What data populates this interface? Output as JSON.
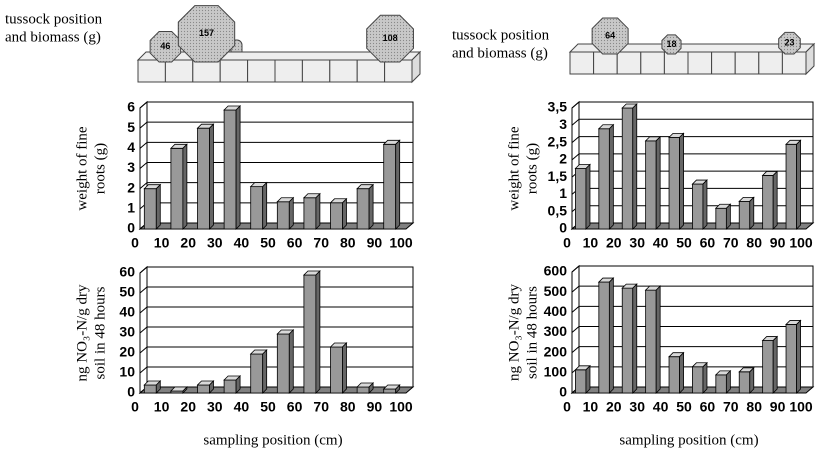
{
  "diagrams": [
    {
      "label": [
        "tussock position",
        "and biomass (g)"
      ],
      "items": [
        {
          "position": 10,
          "biomass": 46
        },
        {
          "position": 25,
          "biomass": 157
        },
        {
          "position": 92,
          "biomass": 108
        }
      ]
    },
    {
      "label": [
        "tussock position",
        "and biomass (g)"
      ],
      "items": [
        {
          "position": 17,
          "biomass": 64
        },
        {
          "position": 43,
          "biomass": 18
        },
        {
          "position": 93,
          "biomass": 23
        }
      ]
    }
  ],
  "chart_data": [
    {
      "type": "bar3d",
      "y_label": [
        "weight of fine",
        "roots (g)"
      ],
      "x": [
        5,
        15,
        25,
        35,
        45,
        55,
        65,
        75,
        85,
        95
      ],
      "values": [
        2.0,
        4.0,
        5.0,
        5.9,
        2.1,
        1.35,
        1.55,
        1.3,
        2.0,
        4.2
      ],
      "xlim": [
        0,
        100
      ],
      "xticks": [
        0,
        10,
        20,
        30,
        40,
        50,
        60,
        70,
        80,
        90,
        100
      ],
      "ylim": [
        0,
        6
      ],
      "yticks": [
        0,
        1,
        2,
        3,
        4,
        5,
        6
      ],
      "grid": true,
      "color": "#999999"
    },
    {
      "type": "bar3d",
      "y_label": [
        "ng NO₃-N/g dry",
        "soil in 48 hours"
      ],
      "x_label": "sampling position (cm)",
      "x": [
        5,
        15,
        25,
        35,
        45,
        55,
        65,
        75,
        85,
        95
      ],
      "values": [
        4,
        1,
        4,
        6.5,
        19.5,
        29.5,
        59,
        23,
        3,
        2
      ],
      "xlim": [
        0,
        100
      ],
      "xticks": [
        0,
        10,
        20,
        30,
        40,
        50,
        60,
        70,
        80,
        90,
        100
      ],
      "ylim": [
        0,
        60
      ],
      "yticks": [
        0,
        10,
        20,
        30,
        40,
        50,
        60
      ],
      "grid": true,
      "color": "#999999"
    },
    {
      "type": "bar3d",
      "y_label": [
        "weight of fine",
        "roots (g)"
      ],
      "x": [
        5,
        15,
        25,
        35,
        45,
        55,
        65,
        75,
        85,
        95
      ],
      "values": [
        1.75,
        2.9,
        3.5,
        2.55,
        2.65,
        1.3,
        0.6,
        0.8,
        1.55,
        2.45
      ],
      "xlim": [
        0,
        100
      ],
      "xticks": [
        0,
        10,
        20,
        30,
        40,
        50,
        60,
        70,
        80,
        90,
        100
      ],
      "ylim": [
        0,
        3.5
      ],
      "yticks": [
        0,
        {
          "value": 0.5,
          "label": "0,5"
        },
        1,
        {
          "value": 1.5,
          "label": "1,5"
        },
        2,
        {
          "value": 2.5,
          "label": "2,5"
        },
        3,
        {
          "value": 3.5,
          "label": "3,5"
        }
      ],
      "grid": true,
      "color": "#999999"
    },
    {
      "type": "bar3d",
      "y_label": [
        "ng NO₃-N/g dry",
        "soil in 48 hours"
      ],
      "x_label": "sampling position (cm)",
      "x": [
        5,
        15,
        25,
        35,
        45,
        55,
        65,
        75,
        85,
        95
      ],
      "values": [
        115,
        550,
        520,
        510,
        180,
        130,
        90,
        105,
        260,
        340
      ],
      "xlim": [
        0,
        100
      ],
      "xticks": [
        0,
        10,
        20,
        30,
        40,
        50,
        60,
        70,
        80,
        90,
        100
      ],
      "ylim": [
        0,
        600
      ],
      "yticks": [
        0,
        100,
        200,
        300,
        400,
        500,
        600
      ],
      "grid": true,
      "color": "#999999"
    }
  ]
}
